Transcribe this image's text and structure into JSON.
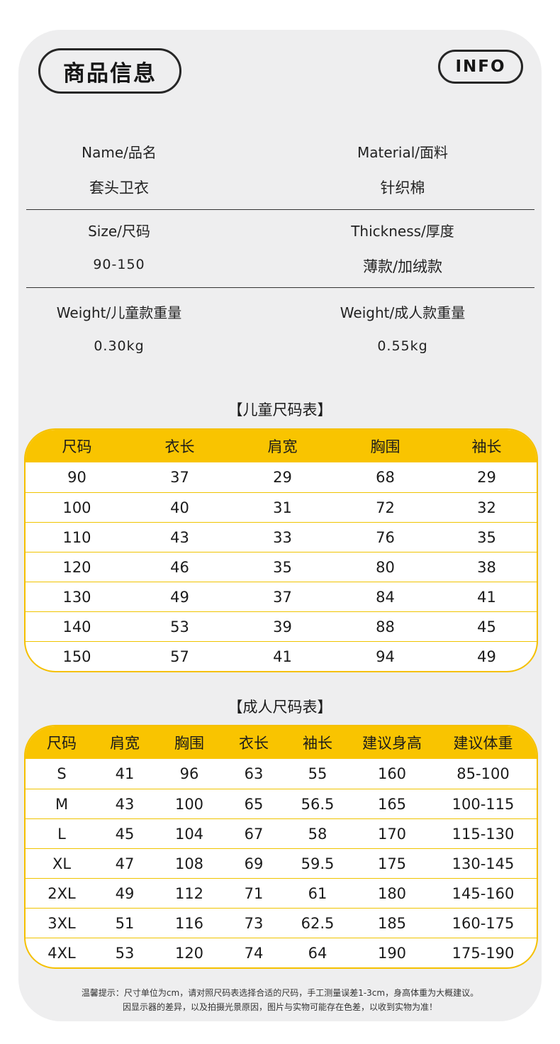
{
  "header": {
    "title": "商品信息",
    "badge": "INFO"
  },
  "info": {
    "rows": [
      {
        "left_label": "Name/品名",
        "left_value": "套头卫衣",
        "right_label": "Material/面料",
        "right_value": "针织棉"
      },
      {
        "left_label": "Size/尺码",
        "left_value": "90-150",
        "right_label": "Thickness/厚度",
        "right_value": "薄款/加绒款"
      },
      {
        "left_label": "Weight/儿童款重量",
        "left_value": "0.30kg",
        "right_label": "Weight/成人款重量",
        "right_value": "0.55kg"
      }
    ]
  },
  "kids_table": {
    "title": "【儿童尺码表】",
    "headers": [
      "尺码",
      "衣长",
      "肩宽",
      "胸围",
      "袖长"
    ],
    "rows": [
      [
        "90",
        "37",
        "29",
        "68",
        "29"
      ],
      [
        "100",
        "40",
        "31",
        "72",
        "32"
      ],
      [
        "110",
        "43",
        "33",
        "76",
        "35"
      ],
      [
        "120",
        "46",
        "35",
        "80",
        "38"
      ],
      [
        "130",
        "49",
        "37",
        "84",
        "41"
      ],
      [
        "140",
        "53",
        "39",
        "88",
        "45"
      ],
      [
        "150",
        "57",
        "41",
        "94",
        "49"
      ]
    ]
  },
  "adult_table": {
    "title": "【成人尺码表】",
    "headers": [
      "尺码",
      "肩宽",
      "胸围",
      "衣长",
      "袖长",
      "建议身高",
      "建议体重"
    ],
    "rows": [
      [
        "S",
        "41",
        "96",
        "63",
        "55",
        "160",
        "85-100"
      ],
      [
        "M",
        "43",
        "100",
        "65",
        "56.5",
        "165",
        "100-115"
      ],
      [
        "L",
        "45",
        "104",
        "67",
        "58",
        "170",
        "115-130"
      ],
      [
        "XL",
        "47",
        "108",
        "69",
        "59.5",
        "175",
        "130-145"
      ],
      [
        "2XL",
        "49",
        "112",
        "71",
        "61",
        "180",
        "145-160"
      ],
      [
        "3XL",
        "51",
        "116",
        "73",
        "62.5",
        "185",
        "160-175"
      ],
      [
        "4XL",
        "53",
        "120",
        "74",
        "64",
        "190",
        "175-190"
      ]
    ]
  },
  "footer": {
    "line1": "温馨提示：尺寸单位为cm，请对照尺码表选择合适的尺码，手工测量误差1-3cm，身高体重为大概建议。",
    "line2": "因显示器的差异，以及拍摄光景原因，图片与实物可能存在色差，以收到实物为准！"
  },
  "colors": {
    "accent": "#f9c400",
    "card": "#eeeeef",
    "text": "#1e1e1e"
  }
}
